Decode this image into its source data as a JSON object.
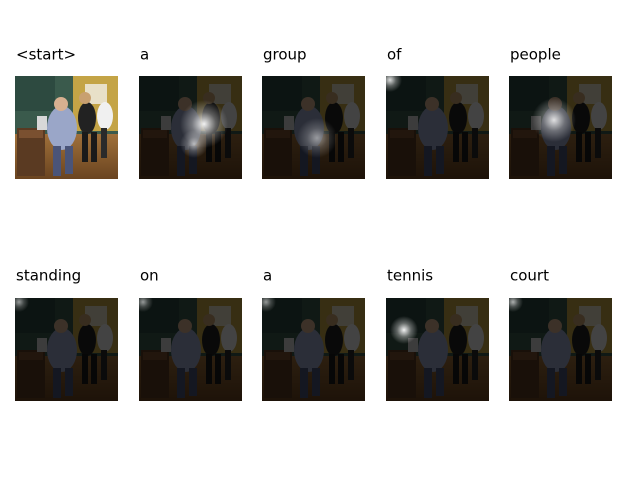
{
  "words": [
    "<start>",
    "a",
    "group",
    "of",
    "people",
    "standing",
    "on",
    "a",
    "tennis",
    "court"
  ]
}
